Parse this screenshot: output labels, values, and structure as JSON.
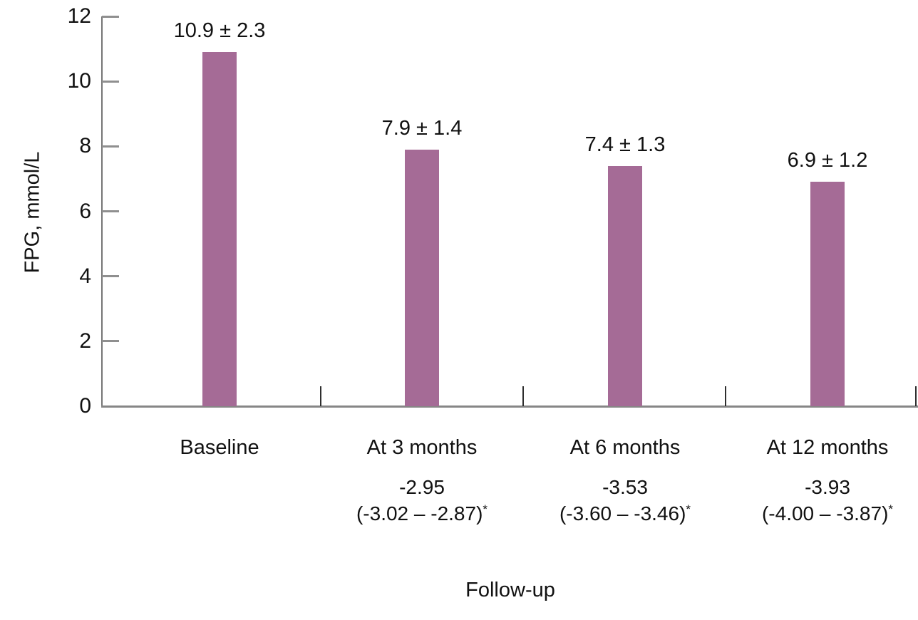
{
  "chart_data": {
    "type": "bar",
    "title": "",
    "xlabel": "Follow-up",
    "ylabel": "FPG, mmol/L",
    "ylim": [
      0,
      12
    ],
    "yticks": [
      0,
      2,
      4,
      6,
      8,
      10,
      12
    ],
    "grid": false,
    "legend": "none",
    "bar_color": "#a56b96",
    "categories": [
      "Baseline",
      "At 3 months",
      "At 6 months",
      "At 12 months"
    ],
    "values": [
      10.9,
      7.9,
      7.4,
      6.9
    ],
    "sd": [
      2.3,
      1.4,
      1.3,
      1.2
    ],
    "value_labels": [
      "10.9 ± 2.3",
      "7.9 ± 1.4",
      "7.4 ± 1.3",
      "6.9 ± 1.2"
    ],
    "change_from_baseline": [
      {
        "mean": null,
        "ci": null,
        "star": null
      },
      {
        "mean": "-2.95",
        "ci": "(-3.02 – -2.87)",
        "star": "*"
      },
      {
        "mean": "-3.53",
        "ci": "(-3.60 – -3.46)",
        "star": "*"
      },
      {
        "mean": "-3.93",
        "ci": "(-4.00 – -3.87)",
        "star": "*"
      }
    ]
  }
}
